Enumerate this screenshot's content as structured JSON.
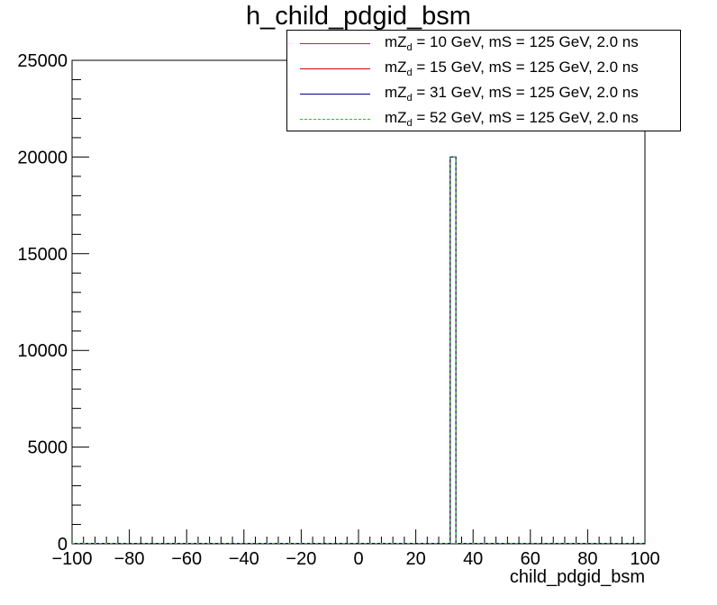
{
  "chart_data": {
    "type": "histogram",
    "title": "h_child_pdgid_bsm",
    "xlabel": "child_pdgid_bsm",
    "ylabel": "",
    "xlim": [
      -100,
      100
    ],
    "ylim": [
      0,
      25000
    ],
    "x_ticks": [
      "−100",
      "−80",
      "−60",
      "−40",
      "−20",
      "0",
      "20",
      "40",
      "60",
      "80",
      "100"
    ],
    "y_ticks": [
      "0",
      "5000",
      "10000",
      "15000",
      "20000",
      "25000"
    ],
    "bins": {
      "start": 32,
      "end": 34,
      "value": 20000
    },
    "series": [
      {
        "name_main": "mZ",
        "name_sub": "d",
        "name_rest": " = 10 GeV, mS = 125 GeV, 2.0 ns",
        "color": "#cc00cc",
        "dash": "solid"
      },
      {
        "name_main": "mZ",
        "name_sub": "d",
        "name_rest": " = 15 GeV, mS = 125 GeV, 2.0 ns",
        "color": "#dd0000",
        "dash": "solid"
      },
      {
        "name_main": "mZ",
        "name_sub": "d",
        "name_rest": " = 31 GeV, mS = 125 GeV, 2.0 ns",
        "color": "#000099",
        "dash": "solid"
      },
      {
        "name_main": "mZ",
        "name_sub": "d",
        "name_rest": " = 52 GeV, mS = 125 GeV, 2.0 ns",
        "color": "#00dd00",
        "dash": "dashed"
      }
    ],
    "legend_position": "top-right",
    "grid": false
  }
}
